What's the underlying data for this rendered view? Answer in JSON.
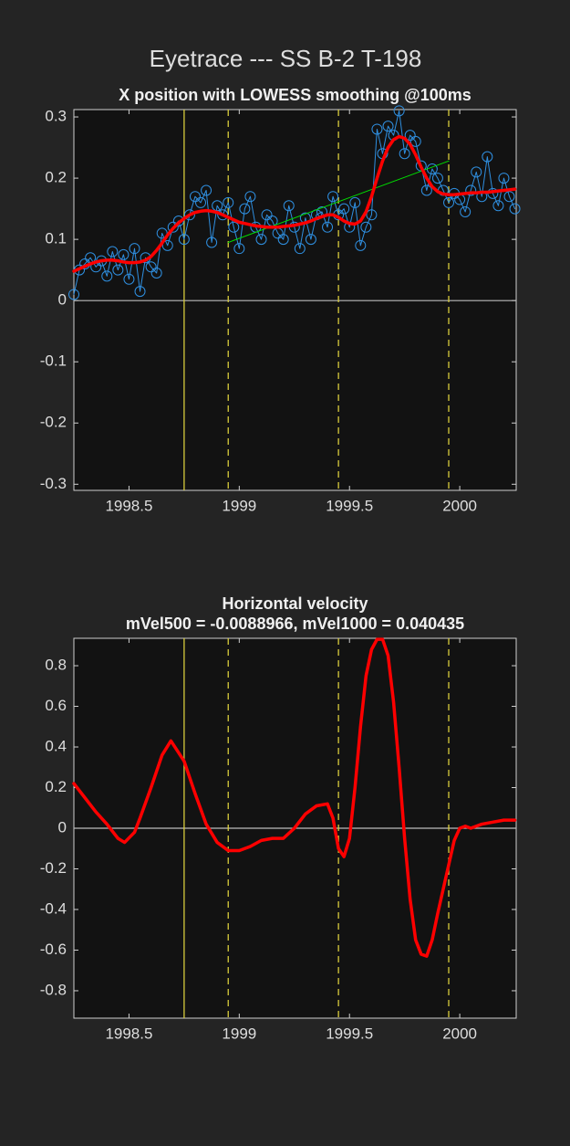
{
  "figure_title": "Eyetrace --- SS B-2 T-198",
  "chart_data": [
    {
      "type": "line",
      "title": "X position with LOWESS smoothing @100ms",
      "x": [
        1998.25,
        1998.275,
        1998.3,
        1998.325,
        1998.35,
        1998.375,
        1998.4,
        1998.425,
        1998.45,
        1998.475,
        1998.5,
        1998.525,
        1998.55,
        1998.575,
        1998.6,
        1998.625,
        1998.65,
        1998.675,
        1998.7,
        1998.725,
        1998.75,
        1998.775,
        1998.8,
        1998.825,
        1998.85,
        1998.875,
        1998.9,
        1998.925,
        1998.95,
        1998.975,
        1999,
        1999.025,
        1999.05,
        1999.075,
        1999.1,
        1999.125,
        1999.15,
        1999.175,
        1999.2,
        1999.225,
        1999.25,
        1999.275,
        1999.3,
        1999.325,
        1999.35,
        1999.375,
        1999.4,
        1999.425,
        1999.45,
        1999.475,
        1999.5,
        1999.525,
        1999.55,
        1999.575,
        1999.6,
        1999.625,
        1999.65,
        1999.675,
        1999.7,
        1999.725,
        1999.75,
        1999.775,
        1999.8,
        1999.825,
        1999.85,
        1999.875,
        1999.9,
        1999.925,
        1999.95,
        1999.975,
        2000,
        2000.025,
        2000.05,
        2000.075,
        2000.1,
        2000.125,
        2000.15,
        2000.175,
        2000.2,
        2000.225,
        2000.25
      ],
      "series": [
        {
          "color": "#2f8fe0",
          "marker": "circle",
          "width": 1,
          "values": [
            0.01,
            0.05,
            0.06,
            0.07,
            0.055,
            0.065,
            0.04,
            0.08,
            0.05,
            0.075,
            0.035,
            0.085,
            0.015,
            0.07,
            0.055,
            0.045,
            0.11,
            0.09,
            0.12,
            0.13,
            0.1,
            0.14,
            0.17,
            0.16,
            0.18,
            0.095,
            0.155,
            0.14,
            0.16,
            0.12,
            0.085,
            0.15,
            0.17,
            0.12,
            0.1,
            0.14,
            0.13,
            0.11,
            0.1,
            0.155,
            0.12,
            0.085,
            0.135,
            0.1,
            0.14,
            0.145,
            0.12,
            0.17,
            0.14,
            0.15,
            0.12,
            0.16,
            0.09,
            0.12,
            0.14,
            0.28,
            0.24,
            0.285,
            0.27,
            0.31,
            0.24,
            0.27,
            0.26,
            0.22,
            0.18,
            0.215,
            0.2,
            0.18,
            0.16,
            0.175,
            0.165,
            0.145,
            0.18,
            0.21,
            0.17,
            0.235,
            0.175,
            0.155,
            0.2,
            0.17,
            0.15
          ]
        },
        {
          "color": "#00e000",
          "width": 1,
          "x": [
            1998.95,
            1999.95
          ],
          "values": [
            0.095,
            0.228
          ]
        },
        {
          "color": "#ff0000",
          "width": 3.5,
          "values": [
            0.048,
            0.052,
            0.056,
            0.06,
            0.063,
            0.065,
            0.066,
            0.066,
            0.065,
            0.063,
            0.062,
            0.062,
            0.063,
            0.066,
            0.072,
            0.082,
            0.094,
            0.107,
            0.118,
            0.127,
            0.134,
            0.14,
            0.144,
            0.146,
            0.147,
            0.146,
            0.144,
            0.14,
            0.136,
            0.132,
            0.128,
            0.126,
            0.124,
            0.122,
            0.121,
            0.12,
            0.12,
            0.12,
            0.121,
            0.122,
            0.123,
            0.125,
            0.127,
            0.13,
            0.134,
            0.137,
            0.14,
            0.14,
            0.136,
            0.13,
            0.126,
            0.125,
            0.13,
            0.145,
            0.17,
            0.2,
            0.228,
            0.25,
            0.263,
            0.268,
            0.265,
            0.255,
            0.238,
            0.218,
            0.2,
            0.186,
            0.178,
            0.174,
            0.173,
            0.173,
            0.174,
            0.175,
            0.176,
            0.176,
            0.177,
            0.177,
            0.178,
            0.179,
            0.18,
            0.181,
            0.182
          ]
        }
      ],
      "xlim": [
        1998.25,
        2000.256
      ],
      "xticks": [
        1998.5,
        1999,
        1999.5,
        2000
      ],
      "ylim": [
        -0.31,
        0.312
      ],
      "yticks": [
        -0.3,
        -0.2,
        -0.1,
        0,
        0.1,
        0.2,
        0.3
      ],
      "hlines": [
        0
      ],
      "hline_color": "#bbbbbb",
      "vlines": [
        {
          "value": 1998.75,
          "style": "solid"
        },
        {
          "value": 1998.95,
          "style": "dashed"
        },
        {
          "value": 1999.45,
          "style": "dashed"
        },
        {
          "value": 1999.95,
          "style": "dashed"
        }
      ],
      "vline_color": "#d8cc3c"
    },
    {
      "type": "line",
      "title": "Horizontal velocity",
      "subtitle": "mVel500 = -0.0088966, mVel1000 = 0.040435",
      "series": [
        {
          "color": "#ff0000",
          "width": 3.5,
          "x": [
            1998.25,
            1998.3,
            1998.35,
            1998.4,
            1998.45,
            1998.48,
            1998.525,
            1998.55,
            1998.6,
            1998.65,
            1998.69,
            1998.75,
            1998.8,
            1998.85,
            1998.9,
            1998.95,
            1999,
            1999.05,
            1999.1,
            1999.15,
            1999.2,
            1999.25,
            1999.3,
            1999.35,
            1999.4,
            1999.425,
            1999.45,
            1999.475,
            1999.5,
            1999.525,
            1999.55,
            1999.575,
            1999.6,
            1999.625,
            1999.65,
            1999.675,
            1999.7,
            1999.725,
            1999.75,
            1999.775,
            1999.8,
            1999.825,
            1999.85,
            1999.875,
            1999.9,
            1999.925,
            1999.95,
            1999.975,
            2000,
            2000.025,
            2000.05,
            2000.075,
            2000.1,
            2000.15,
            2000.2,
            2000.25
          ],
          "values": [
            0.22,
            0.15,
            0.08,
            0.02,
            -0.05,
            -0.07,
            -0.02,
            0.05,
            0.2,
            0.36,
            0.43,
            0.33,
            0.17,
            0.02,
            -0.07,
            -0.11,
            -0.11,
            -0.09,
            -0.06,
            -0.05,
            -0.05,
            0.0,
            0.07,
            0.11,
            0.12,
            0.05,
            -0.1,
            -0.14,
            -0.05,
            0.2,
            0.5,
            0.75,
            0.88,
            0.93,
            0.93,
            0.85,
            0.62,
            0.3,
            -0.05,
            -0.35,
            -0.55,
            -0.62,
            -0.63,
            -0.55,
            -0.42,
            -0.3,
            -0.18,
            -0.06,
            0.0,
            0.01,
            0.0,
            0.01,
            0.02,
            0.03,
            0.04,
            0.04
          ]
        }
      ],
      "xlim": [
        1998.25,
        2000.256
      ],
      "xticks": [
        1998.5,
        1999,
        1999.5,
        2000
      ],
      "ylim": [
        -0.935,
        0.935
      ],
      "yticks": [
        -0.8,
        -0.6,
        -0.4,
        -0.2,
        0,
        0.2,
        0.4,
        0.6,
        0.8
      ],
      "hlines": [
        0
      ],
      "hline_color": "#bbbbbb",
      "vlines": [
        {
          "value": 1998.75,
          "style": "solid"
        },
        {
          "value": 1998.95,
          "style": "dashed"
        },
        {
          "value": 1999.45,
          "style": "dashed"
        },
        {
          "value": 1999.95,
          "style": "dashed"
        }
      ],
      "vline_color": "#d8cc3c"
    }
  ]
}
